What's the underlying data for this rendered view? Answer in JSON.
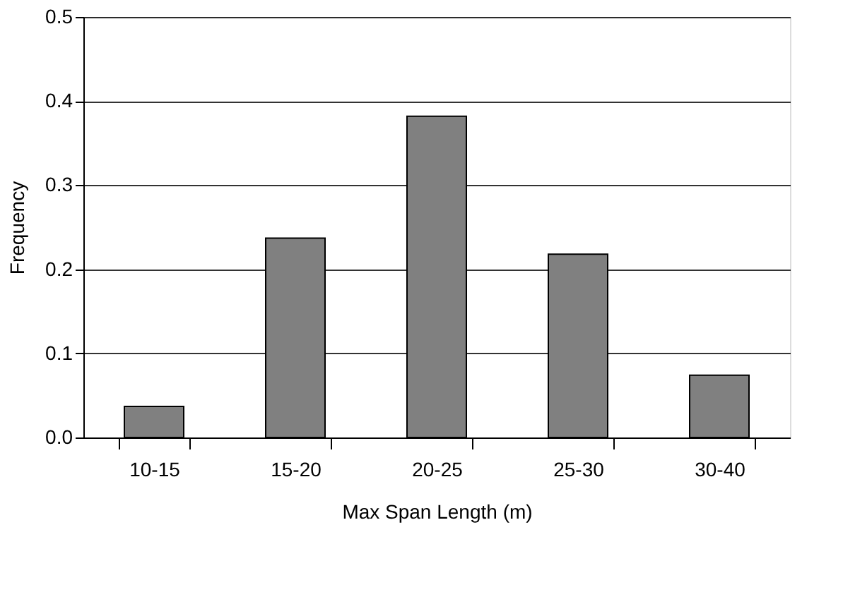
{
  "chart_data": {
    "type": "bar",
    "xlabel": "Max Span Length (m)",
    "ylabel": "Frequency",
    "categories": [
      "10-15",
      "15-20",
      "20-25",
      "25-30",
      "30-40"
    ],
    "values": [
      0.037,
      0.237,
      0.382,
      0.218,
      0.074
    ],
    "color": "#808080",
    "ylim": [
      0,
      0.5
    ],
    "yticks": [
      {
        "value": 0,
        "label": "0.0"
      },
      0.1,
      0.2,
      0.3,
      0.4,
      0.5
    ],
    "grid": "y"
  }
}
